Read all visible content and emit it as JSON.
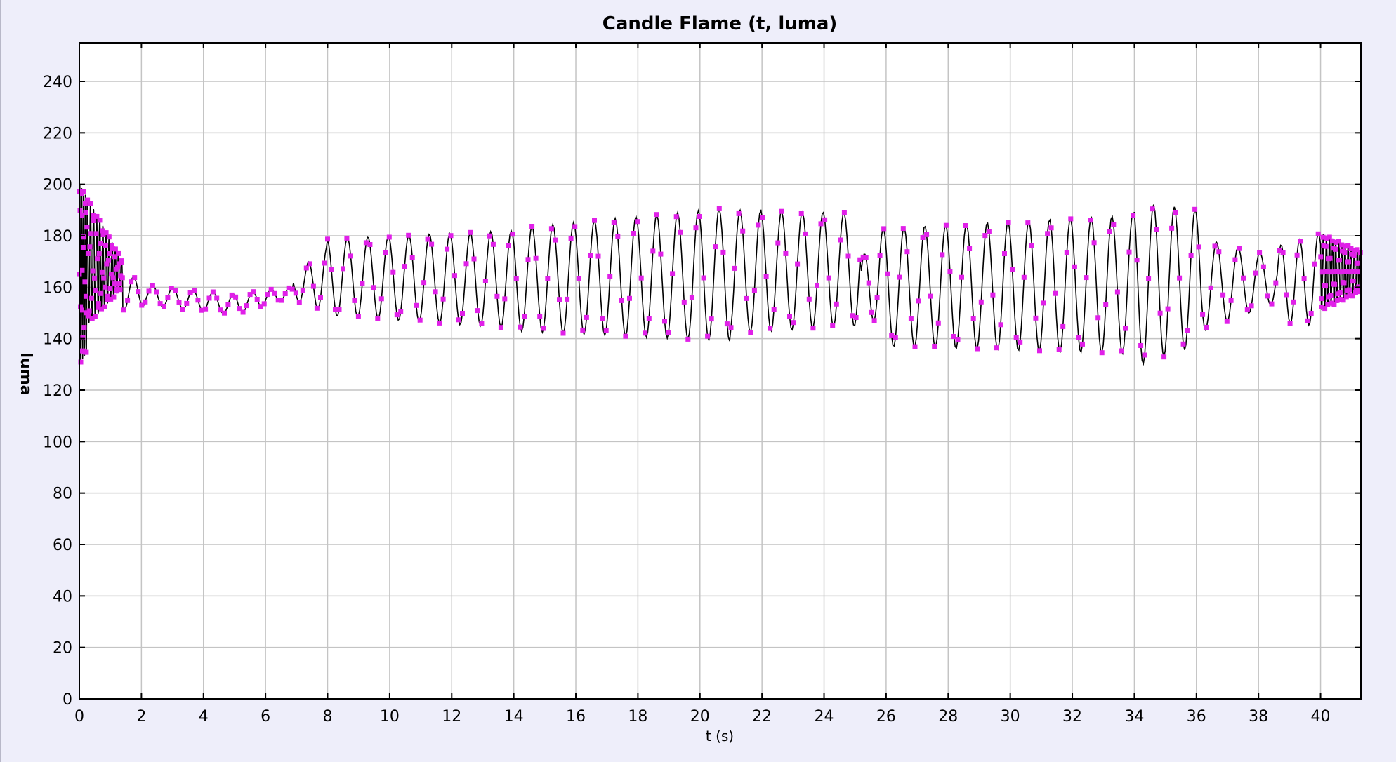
{
  "chart_data": {
    "type": "line",
    "title": "Candle Flame (t, luma)",
    "xlabel": "t (s)",
    "ylabel": "luma",
    "xlim": [
      0,
      41.3
    ],
    "ylim": [
      0,
      255
    ],
    "x_ticks": [
      0,
      2,
      4,
      6,
      8,
      10,
      12,
      14,
      16,
      18,
      20,
      22,
      24,
      26,
      28,
      30,
      32,
      34,
      36,
      38,
      40
    ],
    "y_ticks": [
      0,
      20,
      40,
      60,
      80,
      100,
      120,
      140,
      160,
      180,
      200,
      220,
      240
    ],
    "grid": true,
    "legend": "none",
    "colors": {
      "line": "#000000",
      "marker": "#e020e8",
      "plot_bg": "#ffffff",
      "page_bg": "#eeeefa",
      "grid": "#c4c4c4"
    },
    "series": [
      {
        "style": "line with square markers",
        "segments": [
          {
            "t0": 0.0,
            "t1": 0.25,
            "period": 0.06,
            "amp_start": 35,
            "amp_end": 30,
            "mean_start": 165,
            "mean_end": 165
          },
          {
            "t0": 0.25,
            "t1": 1.4,
            "period": 0.1,
            "amp_start": 25,
            "amp_end": 5,
            "mean_start": 170,
            "mean_end": 165
          },
          {
            "t0": 1.4,
            "t1": 2.2,
            "period": 0.6,
            "amp_start": 7,
            "amp_end": 5,
            "mean_start": 158,
            "mean_end": 158
          },
          {
            "t0": 2.2,
            "t1": 5.2,
            "period": 0.65,
            "amp_start": 4,
            "amp_end": 4,
            "mean_start": 157,
            "mean_end": 153
          },
          {
            "t0": 5.2,
            "t1": 6.9,
            "period": 0.6,
            "amp_start": 4,
            "amp_end": 2,
            "mean_start": 154,
            "mean_end": 158
          },
          {
            "t0": 6.9,
            "t1": 8.0,
            "period": 0.6,
            "amp_start": 5,
            "amp_end": 13,
            "mean_start": 160,
            "mean_end": 163
          },
          {
            "t0": 8.0,
            "t1": 14.0,
            "period": 0.66,
            "amp_start": 15,
            "amp_end": 19,
            "mean_start": 164,
            "mean_end": 163
          },
          {
            "t0": 14.0,
            "t1": 21.0,
            "period": 0.67,
            "amp_start": 20,
            "amp_end": 26,
            "mean_start": 163,
            "mean_end": 165
          },
          {
            "t0": 21.0,
            "t1": 25.2,
            "period": 0.67,
            "amp_start": 24,
            "amp_end": 22,
            "mean_start": 166,
            "mean_end": 167
          },
          {
            "t0": 25.2,
            "t1": 25.8,
            "period": 0.6,
            "amp_start": 12,
            "amp_end": 16,
            "mean_start": 160,
            "mean_end": 162
          },
          {
            "t0": 25.8,
            "t1": 34.0,
            "period": 0.67,
            "amp_start": 23,
            "amp_end": 27,
            "mean_start": 160,
            "mean_end": 161
          },
          {
            "t0": 34.0,
            "t1": 36.2,
            "period": 0.67,
            "amp_start": 32,
            "amp_end": 26,
            "mean_start": 161,
            "mean_end": 164
          },
          {
            "t0": 36.2,
            "t1": 38.6,
            "period": 0.7,
            "amp_start": 18,
            "amp_end": 9,
            "mean_start": 161,
            "mean_end": 163
          },
          {
            "t0": 38.6,
            "t1": 40.0,
            "period": 0.6,
            "amp_start": 15,
            "amp_end": 18,
            "mean_start": 161,
            "mean_end": 163
          },
          {
            "t0": 40.0,
            "t1": 41.3,
            "period": 0.1,
            "amp_start": 15,
            "amp_end": 8,
            "mean_start": 166,
            "mean_end": 166
          }
        ]
      }
    ]
  }
}
